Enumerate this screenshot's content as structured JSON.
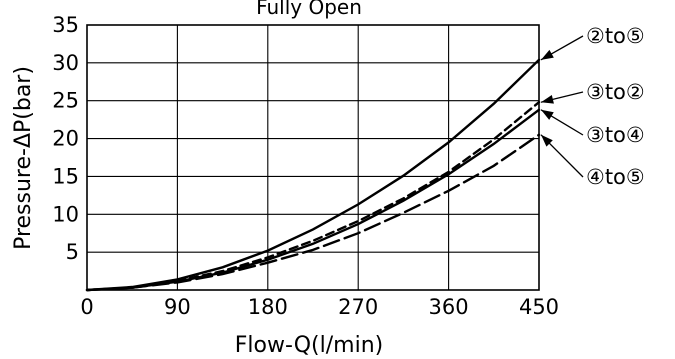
{
  "chart_data": {
    "type": "line",
    "title": "Fully Open",
    "xlabel": "Flow-Q(l/min)",
    "ylabel": "Pressure-ΔP(bar)",
    "xlim": [
      0,
      450
    ],
    "ylim": [
      0,
      35
    ],
    "xticks": [
      0,
      90,
      180,
      270,
      360,
      450
    ],
    "yticks": [
      5,
      10,
      15,
      20,
      25,
      30,
      35
    ],
    "grid": true,
    "series": [
      {
        "name": "②to⑤",
        "style": "solid",
        "x": [
          0,
          45,
          90,
          135,
          180,
          225,
          270,
          315,
          360,
          405,
          450
        ],
        "y": [
          0,
          0.4,
          1.4,
          3.0,
          5.2,
          8.0,
          11.3,
          15.1,
          19.5,
          24.6,
          30.4
        ]
      },
      {
        "name": "③to②",
        "style": "dashed",
        "x": [
          0,
          45,
          90,
          135,
          180,
          225,
          270,
          315,
          360,
          405,
          450
        ],
        "y": [
          0,
          0.3,
          1.2,
          2.5,
          4.3,
          6.5,
          9.1,
          12.1,
          15.6,
          19.9,
          24.8
        ]
      },
      {
        "name": "③to④",
        "style": "solid",
        "x": [
          0,
          45,
          90,
          135,
          180,
          225,
          270,
          315,
          360,
          405,
          450
        ],
        "y": [
          0,
          0.3,
          1.1,
          2.3,
          4.0,
          6.1,
          8.7,
          11.8,
          15.3,
          19.3,
          23.8
        ]
      },
      {
        "name": "④to⑤",
        "style": "longdash",
        "x": [
          0,
          45,
          90,
          135,
          180,
          225,
          270,
          315,
          360,
          405,
          450
        ],
        "y": [
          0,
          0.3,
          1.0,
          2.1,
          3.6,
          5.3,
          7.5,
          10.2,
          13.1,
          16.4,
          20.5
        ]
      }
    ]
  }
}
